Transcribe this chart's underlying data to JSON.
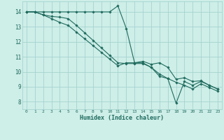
{
  "xlabel": "Humidex (Indice chaleur)",
  "bg_color": "#ceeee8",
  "grid_color": "#9ecfca",
  "line_color": "#1f6b5e",
  "xlim": [
    -0.5,
    23.5
  ],
  "ylim": [
    7.5,
    14.7
  ],
  "yticks": [
    8,
    9,
    10,
    11,
    12,
    13,
    14
  ],
  "xticks": [
    0,
    1,
    2,
    3,
    4,
    5,
    6,
    7,
    8,
    9,
    10,
    11,
    12,
    13,
    14,
    15,
    16,
    17,
    18,
    19,
    20,
    21,
    22,
    23
  ],
  "series": [
    {
      "x": [
        0,
        1,
        2,
        3,
        4,
        5,
        6,
        7,
        8,
        9,
        10,
        11,
        12,
        13,
        14,
        15,
        16,
        17,
        18,
        19,
        20,
        21,
        22,
        23
      ],
      "y": [
        14,
        14,
        14,
        14,
        14,
        14,
        14,
        14,
        14,
        14,
        14,
        14.4,
        12.9,
        10.6,
        10.7,
        10.5,
        10.6,
        10.3,
        9.5,
        9.6,
        9.35,
        9.4,
        9.1,
        8.85
      ]
    },
    {
      "x": [
        0,
        1,
        2,
        3,
        4,
        5,
        6,
        7,
        8,
        9,
        10,
        11,
        12,
        13,
        14,
        15,
        16,
        17,
        18,
        19,
        20,
        21,
        22,
        23
      ],
      "y": [
        14,
        14,
        13.8,
        13.7,
        13.65,
        13.55,
        13.1,
        12.6,
        12.1,
        11.6,
        11.1,
        10.6,
        10.55,
        10.55,
        10.55,
        10.3,
        9.85,
        9.55,
        7.9,
        9.35,
        9.1,
        9.35,
        9.1,
        8.85
      ]
    },
    {
      "x": [
        0,
        1,
        2,
        3,
        4,
        5,
        6,
        7,
        8,
        9,
        10,
        11,
        12,
        13,
        14,
        15,
        16,
        17,
        18,
        19,
        20,
        21,
        22,
        23
      ],
      "y": [
        14,
        14,
        13.8,
        13.55,
        13.3,
        13.1,
        12.65,
        12.2,
        11.75,
        11.3,
        10.85,
        10.4,
        10.6,
        10.6,
        10.6,
        10.3,
        9.7,
        9.55,
        9.3,
        9.1,
        8.85,
        9.2,
        8.95,
        8.7
      ]
    }
  ]
}
